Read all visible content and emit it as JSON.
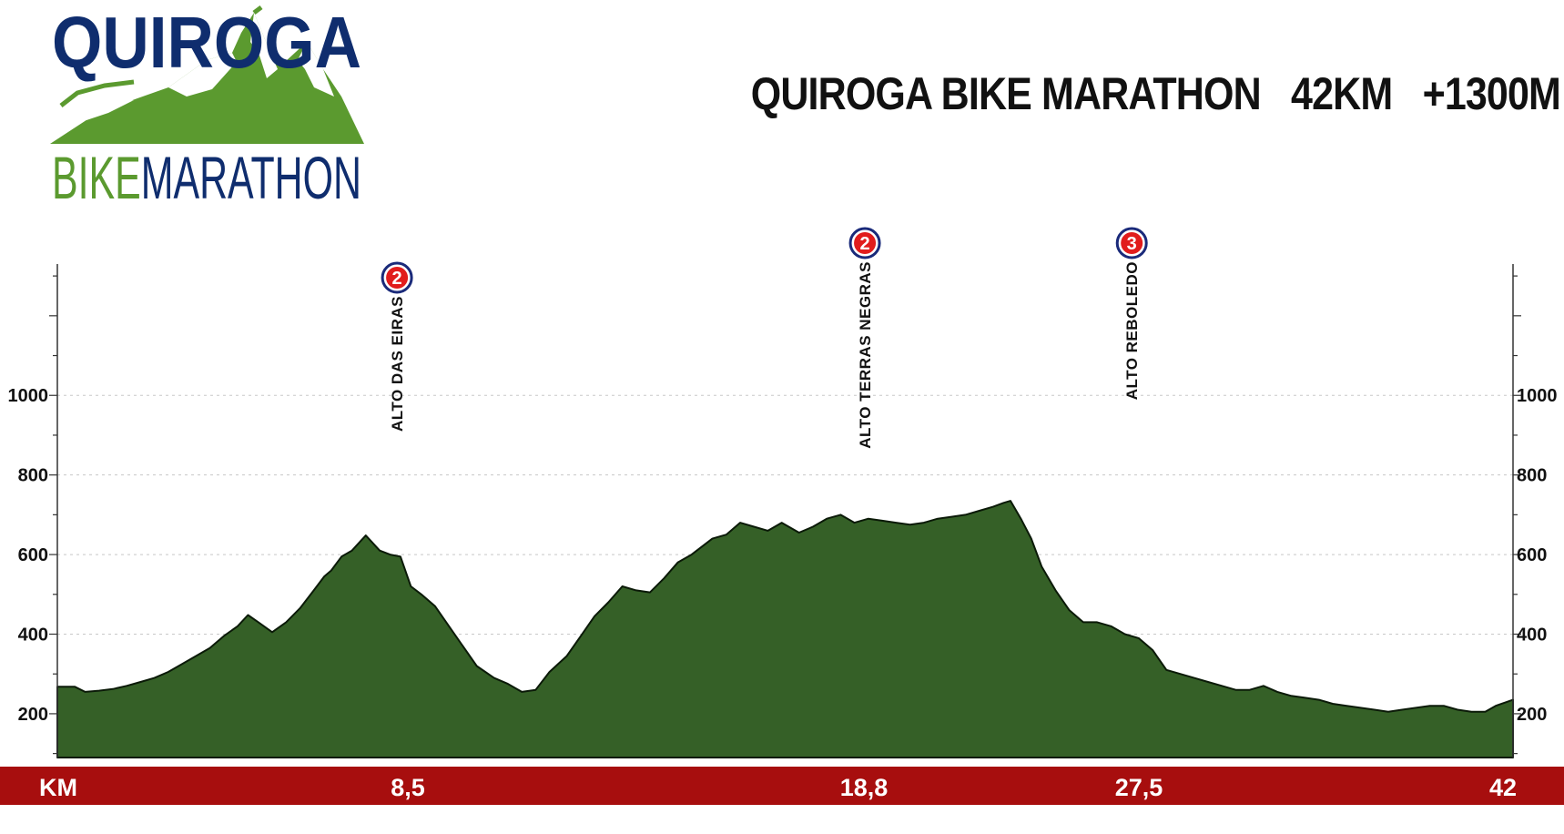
{
  "logo": {
    "top_text": "QUIROGA",
    "bottom_text_left": "BIKE",
    "bottom_text_right": "MARATHON"
  },
  "title": "QUIROGA BIKE MARATHON   42KM   +1300M",
  "colors": {
    "profile_fill": "#356027",
    "profile_stroke": "#0b1a08",
    "km_bar": "#a70e0e",
    "logo_blue": "#0f2d6e",
    "logo_green": "#5b9a2f",
    "badge_red": "#e11c1c",
    "badge_ring": "#1a2a7a"
  },
  "chart_data": {
    "type": "area",
    "title": "QUIROGA BIKE MARATHON   42KM   +1300M",
    "xlabel": "KM",
    "ylabel": "",
    "xlim": [
      0,
      42
    ],
    "ylim": [
      90,
      1330
    ],
    "y_ticks": [
      200,
      400,
      600,
      800,
      1000
    ],
    "x_tick_labels": [
      {
        "x": 8.5,
        "label": "8,5"
      },
      {
        "x": 18.8,
        "label": "18,8"
      },
      {
        "x": 27.5,
        "label": "27,5"
      },
      {
        "x": 42,
        "label": "42"
      }
    ],
    "grid": true,
    "series": [
      {
        "x": [
          0,
          0.5,
          0.8,
          1.2,
          1.6,
          2.0,
          2.4,
          2.8,
          3.2,
          3.6,
          4.0,
          4.4,
          4.8,
          5.2,
          5.5,
          5.8,
          6.2,
          6.6,
          7.0,
          7.4,
          7.7,
          7.9,
          8.2,
          8.5,
          8.9,
          9.3,
          9.6,
          9.9,
          10.2,
          10.5,
          10.9,
          11.3,
          11.7,
          12.1,
          12.6,
          13.0,
          13.4,
          13.8,
          14.2,
          14.7,
          15.1,
          15.5,
          15.9,
          16.3,
          16.7,
          17.1,
          17.5,
          17.9,
          18.3,
          18.6,
          18.9,
          19.3,
          19.7,
          20.1,
          20.5,
          20.9,
          21.4,
          21.8,
          22.2,
          22.6,
          23.0,
          23.4,
          23.8,
          24.2,
          24.6,
          25.0,
          25.4,
          25.8,
          26.2,
          26.6,
          27.0,
          27.3,
          27.5,
          27.8,
          28.1,
          28.4,
          28.8,
          29.2,
          29.6,
          30.0,
          30.4,
          30.8,
          31.2,
          31.6,
          32.0,
          32.4,
          32.8,
          33.2,
          33.6,
          34.0,
          34.4,
          34.8,
          35.2,
          35.6,
          36.0,
          36.4,
          36.8,
          37.2,
          37.6,
          38.0,
          38.4,
          38.8,
          39.2,
          39.6,
          40.0,
          40.4,
          40.8,
          41.2,
          41.5,
          42.0
        ],
        "y": [
          268,
          268,
          255,
          258,
          262,
          270,
          280,
          290,
          305,
          325,
          345,
          365,
          395,
          420,
          448,
          430,
          405,
          430,
          465,
          510,
          545,
          560,
          595,
          610,
          648,
          610,
          600,
          595,
          520,
          500,
          470,
          420,
          370,
          320,
          290,
          275,
          255,
          260,
          305,
          345,
          395,
          445,
          480,
          520,
          510,
          505,
          540,
          580,
          600,
          620,
          640,
          650,
          680,
          670,
          660,
          680,
          655,
          670,
          690,
          700,
          680,
          690,
          685,
          680,
          675,
          680,
          690,
          695,
          700,
          710,
          720,
          730,
          735,
          690,
          640,
          570,
          510,
          460,
          430,
          430,
          420,
          400,
          390,
          360,
          310,
          300,
          290,
          280,
          270,
          260,
          260,
          270,
          255,
          245,
          240,
          235,
          225,
          220,
          215,
          210,
          205,
          210,
          215,
          220,
          220,
          210,
          205,
          205,
          220,
          235
        ]
      }
    ],
    "annotations": [
      {
        "x": 9.8,
        "y": 648,
        "name": "ALTO DAS EIRAS",
        "category": "2"
      },
      {
        "x": 23.3,
        "y": 680,
        "name": "ALTO TERRAS NEGRAS",
        "category": "2"
      },
      {
        "x": 31.0,
        "y": 735,
        "name": "ALTO REBOLEDO",
        "category": "3"
      }
    ]
  }
}
